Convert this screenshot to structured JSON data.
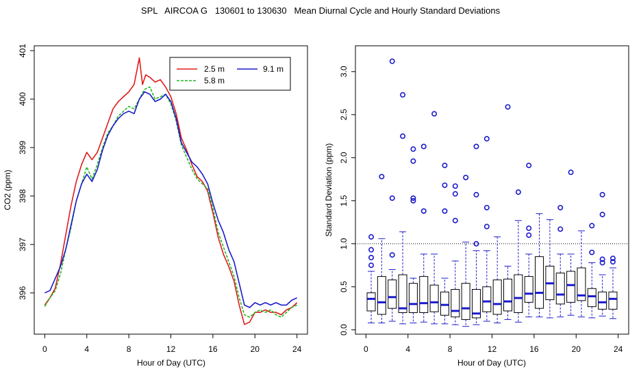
{
  "title": "SPL   AIRCOA G   130601 to 130630   Mean Diurnal Cycle and Hourly Standard Deviations",
  "colors": {
    "series_2_5": "#e01a1a",
    "series_5_8": "#1fb81f",
    "series_9_1": "#1a1acc",
    "box": "#1a1acc",
    "frame": "#000000"
  },
  "chart_data": [
    {
      "type": "line",
      "title": "",
      "xlabel": "Hour of Day (UTC)",
      "ylabel": "CO2 (ppm)",
      "xlim": [
        -1,
        25
      ],
      "ylim": [
        395.15,
        401.1
      ],
      "xticks": [
        0,
        4,
        8,
        12,
        16,
        20,
        24
      ],
      "yticks": [
        396,
        397,
        398,
        399,
        400,
        401
      ],
      "ytick_labels": [
        "396",
        "397",
        "398",
        "399",
        "400",
        "401"
      ],
      "legend": [
        "2.5 m",
        "5.8 m",
        "9.1 m"
      ],
      "legend_position": "top-right",
      "series": [
        {
          "name": "2.5 m",
          "color": "#e01a1a",
          "dash": "",
          "points": [
            [
              0,
              395.75
            ],
            [
              0.5,
              395.9
            ],
            [
              1,
              396.1
            ],
            [
              1.5,
              396.6
            ],
            [
              2,
              397.2
            ],
            [
              2.5,
              397.8
            ],
            [
              3,
              398.3
            ],
            [
              3.5,
              398.65
            ],
            [
              4,
              398.9
            ],
            [
              4.5,
              398.75
            ],
            [
              5,
              398.9
            ],
            [
              5.5,
              399.2
            ],
            [
              6,
              399.5
            ],
            [
              6.5,
              399.8
            ],
            [
              7,
              399.95
            ],
            [
              7.5,
              400.05
            ],
            [
              8,
              400.15
            ],
            [
              8.5,
              400.3
            ],
            [
              9,
              400.85
            ],
            [
              9.3,
              400.3
            ],
            [
              9.6,
              400.5
            ],
            [
              10,
              400.45
            ],
            [
              10.5,
              400.35
            ],
            [
              11,
              400.4
            ],
            [
              11.5,
              400.25
            ],
            [
              12,
              400.05
            ],
            [
              12.5,
              399.7
            ],
            [
              13,
              399.2
            ],
            [
              13.5,
              398.95
            ],
            [
              14,
              398.65
            ],
            [
              14.5,
              398.4
            ],
            [
              15,
              398.3
            ],
            [
              15.5,
              398.1
            ],
            [
              16,
              397.65
            ],
            [
              16.5,
              397.15
            ],
            [
              17,
              396.8
            ],
            [
              17.5,
              396.55
            ],
            [
              18,
              396.25
            ],
            [
              18.5,
              395.75
            ],
            [
              19,
              395.35
            ],
            [
              19.5,
              395.4
            ],
            [
              20,
              395.6
            ],
            [
              20.5,
              395.6
            ],
            [
              21,
              395.65
            ],
            [
              21.5,
              395.6
            ],
            [
              22,
              395.6
            ],
            [
              22.5,
              395.55
            ],
            [
              23,
              395.65
            ],
            [
              23.5,
              395.7
            ],
            [
              24,
              395.8
            ]
          ]
        },
        {
          "name": "5.8 m",
          "color": "#1fb81f",
          "dash": "4,2",
          "points": [
            [
              0,
              395.72
            ],
            [
              0.5,
              395.9
            ],
            [
              1,
              396.05
            ],
            [
              1.5,
              396.4
            ],
            [
              2,
              396.9
            ],
            [
              2.5,
              397.35
            ],
            [
              3,
              397.9
            ],
            [
              3.5,
              398.25
            ],
            [
              4,
              398.6
            ],
            [
              4.5,
              398.35
            ],
            [
              5,
              398.65
            ],
            [
              5.5,
              399
            ],
            [
              6,
              399.3
            ],
            [
              6.5,
              399.45
            ],
            [
              7,
              399.65
            ],
            [
              7.5,
              399.75
            ],
            [
              8,
              399.85
            ],
            [
              8.5,
              399.8
            ],
            [
              9,
              400
            ],
            [
              9.5,
              400.2
            ],
            [
              10,
              400.25
            ],
            [
              10.5,
              400
            ],
            [
              11,
              400.05
            ],
            [
              11.5,
              400.1
            ],
            [
              12,
              399.9
            ],
            [
              12.5,
              399.55
            ],
            [
              13,
              399.05
            ],
            [
              13.5,
              398.8
            ],
            [
              14,
              398.55
            ],
            [
              14.5,
              398.35
            ],
            [
              15,
              398.25
            ],
            [
              15.5,
              398.15
            ],
            [
              16,
              397.75
            ],
            [
              16.5,
              397.25
            ],
            [
              17,
              396.95
            ],
            [
              17.5,
              396.65
            ],
            [
              18,
              396.35
            ],
            [
              18.5,
              395.9
            ],
            [
              19,
              395.55
            ],
            [
              19.5,
              395.5
            ],
            [
              20,
              395.6
            ],
            [
              20.5,
              395.65
            ],
            [
              21,
              395.6
            ],
            [
              21.5,
              395.65
            ],
            [
              22,
              395.55
            ],
            [
              22.5,
              395.5
            ],
            [
              23,
              395.6
            ],
            [
              23.5,
              395.7
            ],
            [
              24,
              395.75
            ]
          ]
        },
        {
          "name": "9.1 m",
          "color": "#1a1acc",
          "dash": "",
          "points": [
            [
              0,
              396
            ],
            [
              0.5,
              396.05
            ],
            [
              1,
              396.3
            ],
            [
              1.5,
              396.55
            ],
            [
              2,
              396.9
            ],
            [
              2.5,
              397.4
            ],
            [
              3,
              397.9
            ],
            [
              3.5,
              398.25
            ],
            [
              4,
              398.45
            ],
            [
              4.5,
              398.3
            ],
            [
              5,
              398.55
            ],
            [
              5.5,
              398.95
            ],
            [
              6,
              399.25
            ],
            [
              6.5,
              399.45
            ],
            [
              7,
              399.6
            ],
            [
              7.5,
              399.7
            ],
            [
              8,
              399.75
            ],
            [
              8.5,
              399.7
            ],
            [
              9,
              400
            ],
            [
              9.5,
              400.15
            ],
            [
              10,
              400.1
            ],
            [
              10.5,
              399.95
            ],
            [
              11,
              400
            ],
            [
              11.5,
              400.1
            ],
            [
              12,
              399.95
            ],
            [
              12.5,
              399.6
            ],
            [
              13,
              399.1
            ],
            [
              13.5,
              398.9
            ],
            [
              14,
              398.7
            ],
            [
              14.5,
              398.6
            ],
            [
              15,
              398.45
            ],
            [
              15.5,
              398.25
            ],
            [
              16,
              397.85
            ],
            [
              16.5,
              397.5
            ],
            [
              17,
              397.25
            ],
            [
              17.5,
              396.9
            ],
            [
              18,
              396.65
            ],
            [
              18.5,
              396.2
            ],
            [
              19,
              395.75
            ],
            [
              19.5,
              395.7
            ],
            [
              20,
              395.8
            ],
            [
              20.5,
              395.75
            ],
            [
              21,
              395.8
            ],
            [
              21.5,
              395.75
            ],
            [
              22,
              395.8
            ],
            [
              22.5,
              395.75
            ],
            [
              23,
              395.75
            ],
            [
              23.5,
              395.85
            ],
            [
              24,
              395.9
            ]
          ]
        }
      ]
    },
    {
      "type": "box",
      "title": "",
      "xlabel": "Hour of Day (UTC)",
      "ylabel": "Standard Deviation (ppm)",
      "xlim": [
        -1,
        25
      ],
      "ylim": [
        -0.05,
        3.3
      ],
      "xticks": [
        0,
        4,
        8,
        12,
        16,
        20,
        24
      ],
      "yticks": [
        0.0,
        0.5,
        1.0,
        1.5,
        2.0,
        2.5,
        3.0
      ],
      "ytick_labels": [
        "0.0",
        "0.5",
        "1.0",
        "1.5",
        "2.0",
        "2.5",
        "3.0"
      ],
      "reference_line": 1.0,
      "boxes": [
        {
          "hour": 0.5,
          "whisker_low": 0.08,
          "q1": 0.22,
          "median": 0.36,
          "q3": 0.43,
          "whisker_high": 0.68,
          "outliers": [
            1.08,
            0.93,
            0.84,
            0.75
          ]
        },
        {
          "hour": 1.5,
          "whisker_low": 0.08,
          "q1": 0.18,
          "median": 0.32,
          "q3": 0.62,
          "whisker_high": 1.06,
          "outliers": [
            1.78
          ]
        },
        {
          "hour": 2.5,
          "whisker_low": 0.1,
          "q1": 0.25,
          "median": 0.38,
          "q3": 0.58,
          "whisker_high": 0.7,
          "outliers": [
            3.12,
            1.53,
            0.87
          ]
        },
        {
          "hour": 3.5,
          "whisker_low": 0.07,
          "q1": 0.2,
          "median": 0.25,
          "q3": 0.64,
          "whisker_high": 1.14,
          "outliers": [
            2.73,
            2.25
          ]
        },
        {
          "hour": 4.5,
          "whisker_low": 0.08,
          "q1": 0.2,
          "median": 0.3,
          "q3": 0.54,
          "whisker_high": 0.6,
          "outliers": [
            2.1,
            1.96,
            1.53,
            1.5
          ]
        },
        {
          "hour": 5.5,
          "whisker_low": 0.09,
          "q1": 0.2,
          "median": 0.31,
          "q3": 0.62,
          "whisker_high": 0.88,
          "outliers": [
            2.13,
            1.38
          ]
        },
        {
          "hour": 6.5,
          "whisker_low": 0.07,
          "q1": 0.21,
          "median": 0.32,
          "q3": 0.52,
          "whisker_high": 0.88,
          "outliers": [
            2.51
          ]
        },
        {
          "hour": 7.5,
          "whisker_low": 0.07,
          "q1": 0.17,
          "median": 0.29,
          "q3": 0.44,
          "whisker_high": 0.6,
          "outliers": [
            1.91,
            1.68,
            1.38
          ]
        },
        {
          "hour": 8.5,
          "whisker_low": 0.06,
          "q1": 0.15,
          "median": 0.22,
          "q3": 0.47,
          "whisker_high": 0.8,
          "outliers": [
            1.67,
            1.58,
            1.27
          ]
        },
        {
          "hour": 9.5,
          "whisker_low": 0.04,
          "q1": 0.12,
          "median": 0.25,
          "q3": 0.54,
          "whisker_high": 1.02,
          "outliers": [
            1.77
          ]
        },
        {
          "hour": 10.5,
          "whisker_low": 0.06,
          "q1": 0.14,
          "median": 0.19,
          "q3": 0.47,
          "whisker_high": 0.92,
          "outliers": [
            2.13,
            1.57,
            1.0
          ]
        },
        {
          "hour": 11.5,
          "whisker_low": 0.1,
          "q1": 0.21,
          "median": 0.33,
          "q3": 0.5,
          "whisker_high": 0.92,
          "outliers": [
            2.22,
            1.42,
            1.2
          ]
        },
        {
          "hour": 12.5,
          "whisker_low": 0.08,
          "q1": 0.18,
          "median": 0.3,
          "q3": 0.58,
          "whisker_high": 1.08,
          "outliers": []
        },
        {
          "hour": 13.5,
          "whisker_low": 0.12,
          "q1": 0.22,
          "median": 0.33,
          "q3": 0.59,
          "whisker_high": 0.74,
          "outliers": [
            2.59
          ]
        },
        {
          "hour": 14.5,
          "whisker_low": 0.09,
          "q1": 0.2,
          "median": 0.37,
          "q3": 0.64,
          "whisker_high": 1.27,
          "outliers": [
            1.6
          ]
        },
        {
          "hour": 15.5,
          "whisker_low": 0.15,
          "q1": 0.32,
          "median": 0.42,
          "q3": 0.62,
          "whisker_high": 0.88,
          "outliers": [
            1.91,
            1.18,
            1.1
          ]
        },
        {
          "hour": 16.5,
          "whisker_low": 0.15,
          "q1": 0.25,
          "median": 0.43,
          "q3": 0.85,
          "whisker_high": 1.35,
          "outliers": []
        },
        {
          "hour": 17.5,
          "whisker_low": 0.14,
          "q1": 0.35,
          "median": 0.54,
          "q3": 0.74,
          "whisker_high": 1.28,
          "outliers": []
        },
        {
          "hour": 18.5,
          "whisker_low": 0.15,
          "q1": 0.3,
          "median": 0.41,
          "q3": 0.66,
          "whisker_high": 0.88,
          "outliers": [
            1.42,
            1.17
          ]
        },
        {
          "hour": 19.5,
          "whisker_low": 0.17,
          "q1": 0.32,
          "median": 0.52,
          "q3": 0.68,
          "whisker_high": 0.88,
          "outliers": [
            1.83
          ]
        },
        {
          "hour": 20.5,
          "whisker_low": 0.15,
          "q1": 0.34,
          "median": 0.4,
          "q3": 0.72,
          "whisker_high": 1.15,
          "outliers": []
        },
        {
          "hour": 21.5,
          "whisker_low": 0.14,
          "q1": 0.27,
          "median": 0.39,
          "q3": 0.48,
          "whisker_high": 0.78,
          "outliers": [
            1.21,
            0.9
          ]
        },
        {
          "hour": 22.5,
          "whisker_low": 0.16,
          "q1": 0.24,
          "median": 0.32,
          "q3": 0.44,
          "whisker_high": 0.64,
          "outliers": [
            1.57,
            1.34,
            0.82,
            0.78
          ]
        },
        {
          "hour": 23.5,
          "whisker_low": 0.13,
          "q1": 0.24,
          "median": 0.36,
          "q3": 0.44,
          "whisker_high": 0.72,
          "outliers": [
            0.83,
            0.79
          ]
        }
      ]
    }
  ]
}
